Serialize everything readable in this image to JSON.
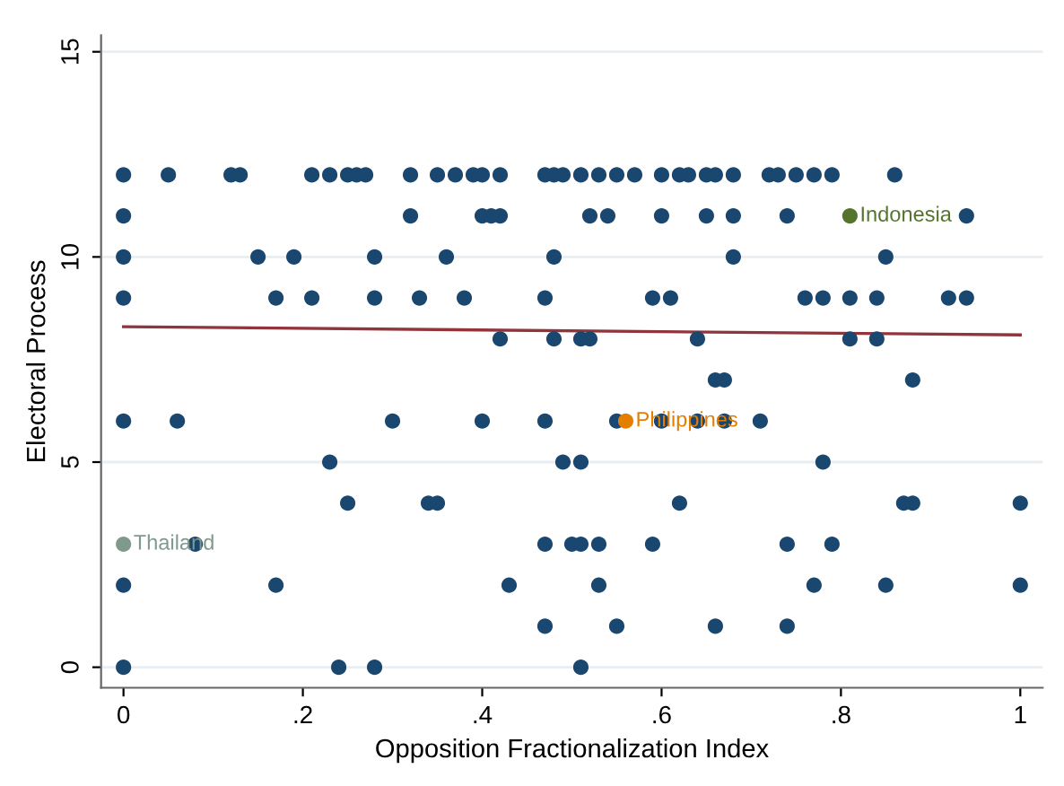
{
  "chart_data": {
    "type": "scatter",
    "xlabel": "Opposition Fractionalization Index",
    "ylabel": "Electoral Process",
    "xlim": [
      -0.025,
      1.025
    ],
    "ylim": [
      -0.5,
      15.4
    ],
    "xticks": [
      0,
      {
        "value": 0.2,
        "label": ".2"
      },
      {
        "value": 0.4,
        "label": ".4"
      },
      {
        "value": 0.6,
        "label": ".6"
      },
      {
        "value": 0.8,
        "label": ".8"
      },
      1
    ],
    "yticks": [
      0,
      5,
      10,
      15
    ],
    "grid": "y",
    "marker": "circle",
    "series": [
      {
        "color": "#1a476f",
        "x": [
          0,
          0.05,
          0.12,
          0.13,
          0.21,
          0.23,
          0.25,
          0.26,
          0.27,
          0.32,
          0.35,
          0.37,
          0.39,
          0.4,
          0.42,
          0.47,
          0.48,
          0.49,
          0.51,
          0.53,
          0.55,
          0.57,
          0.6,
          0.62,
          0.63,
          0.65,
          0.66,
          0.68,
          0.72,
          0.73,
          0.75,
          0.77,
          0.79,
          0.86,
          0,
          0.32,
          0.4,
          0.41,
          0.42,
          0.52,
          0.54,
          0.6,
          0.65,
          0.68,
          0.74,
          0.94,
          0,
          0.15,
          0.19,
          0.28,
          0.36,
          0.48,
          0.68,
          0.85,
          0,
          0.17,
          0.21,
          0.28,
          0.33,
          0.38,
          0.47,
          0.59,
          0.61,
          0.76,
          0.78,
          0.81,
          0.84,
          0.92,
          0.94,
          0.42,
          0.48,
          0.51,
          0.52,
          0.64,
          0.81,
          0.84,
          0.66,
          0.67,
          0.88,
          0,
          0.06,
          0.3,
          0.4,
          0.47,
          0.55,
          0.6,
          0.64,
          0.67,
          0.71,
          0.23,
          0.49,
          0.51,
          0.78,
          0.25,
          0.34,
          0.35,
          0.62,
          0.87,
          0.88,
          1,
          0.08,
          0.47,
          0.5,
          0.51,
          0.53,
          0.59,
          0.74,
          0.79,
          0,
          0.17,
          0.43,
          0.53,
          0.77,
          0.85,
          1,
          0.47,
          0.55,
          0.66,
          0.74,
          0,
          0.24,
          0.28,
          0.51
        ],
        "values": [
          12,
          12,
          12,
          12,
          12,
          12,
          12,
          12,
          12,
          12,
          12,
          12,
          12,
          12,
          12,
          12,
          12,
          12,
          12,
          12,
          12,
          12,
          12,
          12,
          12,
          12,
          12,
          12,
          12,
          12,
          12,
          12,
          12,
          12,
          11,
          11,
          11,
          11,
          11,
          11,
          11,
          11,
          11,
          11,
          11,
          11,
          10,
          10,
          10,
          10,
          10,
          10,
          10,
          10,
          9,
          9,
          9,
          9,
          9,
          9,
          9,
          9,
          9,
          9,
          9,
          9,
          9,
          9,
          9,
          8,
          8,
          8,
          8,
          8,
          8,
          8,
          7,
          7,
          7,
          6,
          6,
          6,
          6,
          6,
          6,
          6,
          6,
          6,
          6,
          5,
          5,
          5,
          5,
          4,
          4,
          4,
          4,
          4,
          4,
          4,
          3,
          3,
          3,
          3,
          3,
          3,
          3,
          3,
          2,
          2,
          2,
          2,
          2,
          2,
          2,
          1,
          1,
          1,
          1,
          0,
          0,
          0,
          0
        ]
      },
      {
        "name": "Indonesia",
        "color": "#55752f",
        "x": [
          0.81
        ],
        "values": [
          11
        ]
      },
      {
        "name": "Philippines",
        "color": "#e37e00",
        "x": [
          0.56
        ],
        "values": [
          6
        ]
      },
      {
        "name": "Thailand",
        "color": "#7f998d",
        "x": [
          0
        ],
        "values": [
          3
        ]
      },
      {
        "type": "line",
        "color": "#90353b",
        "x": [
          0,
          1
        ],
        "values": [
          8.3,
          8.1
        ],
        "marker": "none"
      }
    ]
  }
}
